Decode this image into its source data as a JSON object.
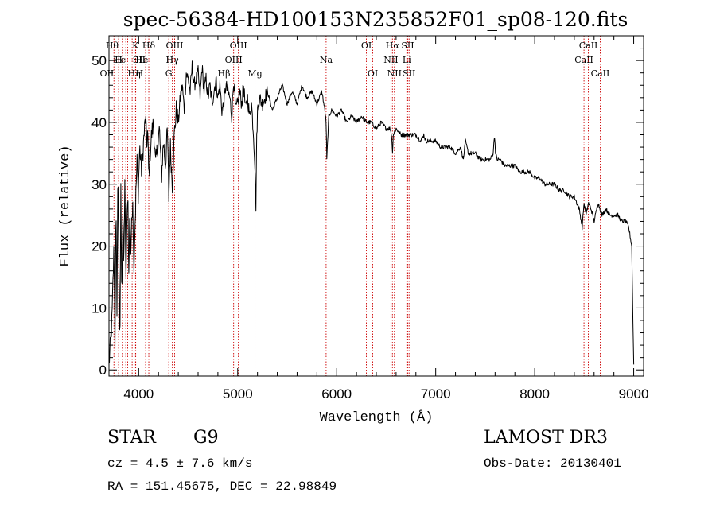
{
  "chart_data": {
    "type": "line",
    "title": "spec-56384-HD100153N235852F01_sp08-120.fits",
    "xlabel": "Wavelength (Å)",
    "ylabel": "Flux (relative)",
    "xlim": [
      3700,
      9100
    ],
    "ylim": [
      -1,
      54
    ],
    "xticks": [
      4000,
      5000,
      6000,
      7000,
      8000,
      9000
    ],
    "yticks": [
      0,
      10,
      20,
      30,
      40,
      50
    ],
    "x_minor_step": 200,
    "y_minor_step": 2,
    "series": [
      {
        "name": "flux",
        "color": "#000000",
        "x": [
          3700,
          3710,
          3730,
          3750,
          3760,
          3770,
          3780,
          3790,
          3800,
          3810,
          3820,
          3830,
          3840,
          3850,
          3860,
          3870,
          3880,
          3890,
          3900,
          3910,
          3920,
          3930,
          3940,
          3950,
          3960,
          3968,
          3975,
          3985,
          3995,
          4010,
          4030,
          4050,
          4070,
          4080,
          4090,
          4102,
          4115,
          4130,
          4150,
          4170,
          4190,
          4210,
          4230,
          4250,
          4270,
          4290,
          4305,
          4310,
          4320,
          4340,
          4360,
          4380,
          4400,
          4420,
          4440,
          4460,
          4480,
          4500,
          4520,
          4540,
          4560,
          4580,
          4600,
          4620,
          4640,
          4660,
          4680,
          4700,
          4720,
          4740,
          4760,
          4780,
          4800,
          4820,
          4840,
          4861,
          4880,
          4900,
          4920,
          4940,
          4960,
          4980,
          5000,
          5020,
          5040,
          5060,
          5080,
          5100,
          5120,
          5140,
          5160,
          5175,
          5183,
          5190,
          5200,
          5220,
          5250,
          5300,
          5350,
          5400,
          5450,
          5500,
          5550,
          5600,
          5650,
          5700,
          5750,
          5800,
          5850,
          5880,
          5893,
          5900,
          5920,
          5950,
          6000,
          6050,
          6100,
          6150,
          6200,
          6250,
          6300,
          6350,
          6400,
          6450,
          6500,
          6540,
          6555,
          6563,
          6572,
          6600,
          6650,
          6700,
          6750,
          6800,
          6850,
          6880,
          6900,
          6950,
          7000,
          7050,
          7100,
          7150,
          7200,
          7250,
          7280,
          7300,
          7330,
          7360,
          7400,
          7450,
          7500,
          7550,
          7580,
          7595,
          7605,
          7620,
          7650,
          7700,
          7750,
          7800,
          7850,
          7900,
          7950,
          8000,
          8050,
          8100,
          8150,
          8200,
          8250,
          8300,
          8350,
          8400,
          8450,
          8480,
          8498,
          8520,
          8542,
          8570,
          8600,
          8640,
          8662,
          8680,
          8720,
          8760,
          8800,
          8840,
          8880,
          8920,
          8950,
          8980,
          8995,
          9000
        ],
        "y": [
          1,
          3,
          8,
          20,
          4,
          26,
          10,
          33,
          18,
          2,
          29,
          12,
          25,
          16,
          31,
          14,
          22,
          30,
          15,
          26,
          19,
          24,
          28,
          16,
          22,
          26,
          30,
          34,
          28,
          36,
          32,
          37,
          41,
          36,
          39,
          31,
          35,
          38,
          40,
          33,
          36,
          39,
          31,
          37,
          33,
          39,
          27,
          32,
          36,
          30,
          38,
          42,
          40,
          44,
          46,
          42,
          48,
          47,
          45,
          49,
          46,
          47,
          48,
          44,
          49,
          45,
          47,
          44,
          46,
          43,
          45,
          47,
          44,
          46,
          42,
          43,
          46,
          45,
          44,
          41,
          47,
          42,
          43,
          45,
          43,
          46,
          42,
          44,
          41,
          43,
          38,
          33,
          25,
          36,
          42,
          44,
          43,
          45,
          42,
          44,
          46,
          43,
          45,
          43,
          46,
          44,
          45,
          43,
          45,
          42,
          40,
          34,
          41,
          42,
          41,
          42,
          40,
          41,
          40,
          41,
          40,
          40,
          39,
          40,
          39,
          39,
          38,
          35,
          38,
          39,
          38,
          38,
          38,
          38,
          37,
          38,
          37,
          37,
          37,
          36,
          36,
          36,
          35,
          36,
          34,
          37,
          35,
          35,
          35,
          34,
          34,
          34,
          35,
          38,
          35,
          34,
          34,
          33,
          33,
          33,
          32,
          32,
          32,
          31,
          31,
          30,
          30,
          30,
          29,
          29,
          28,
          28,
          26,
          23,
          27,
          25,
          27,
          26,
          24,
          27,
          26,
          25,
          26,
          25,
          25,
          25,
          24,
          24,
          23,
          20,
          5,
          1
        ]
      }
    ],
    "lines": [
      {
        "wavelength": 3750,
        "label": "OII",
        "row": 2,
        "anchor": "right"
      },
      {
        "wavelength": 3797,
        "label": "Hθ",
        "row": 0,
        "anchor": "right"
      },
      {
        "wavelength": 3835,
        "label": "H",
        "row": 1,
        "anchor": "right"
      },
      {
        "wavelength": 3870,
        "label": "He",
        "row": 1,
        "anchor": "right"
      },
      {
        "wavelength": 3889,
        "label": "Hη",
        "row": 2,
        "anchor": "left"
      },
      {
        "wavelength": 3934,
        "label": "K",
        "row": 0,
        "anchor": "left"
      },
      {
        "wavelength": 3970,
        "label": "H",
        "row": 2,
        "anchor": "left"
      },
      {
        "wavelength": 3968,
        "label": "He",
        "row": 1,
        "anchor": "left"
      },
      {
        "wavelength": 4070,
        "label": "SII",
        "row": 1,
        "anchor": "right"
      },
      {
        "wavelength": 4102,
        "label": "Hδ",
        "row": 0,
        "anchor": "middle"
      },
      {
        "wavelength": 4304,
        "label": "G",
        "row": 2,
        "anchor": "middle"
      },
      {
        "wavelength": 4340,
        "label": "Hγ",
        "row": 1,
        "anchor": "middle"
      },
      {
        "wavelength": 4363,
        "label": "OIII",
        "row": 0,
        "anchor": "middle"
      },
      {
        "wavelength": 4861,
        "label": "Hβ",
        "row": 2,
        "anchor": "middle"
      },
      {
        "wavelength": 4959,
        "label": "OIII",
        "row": 1,
        "anchor": "middle"
      },
      {
        "wavelength": 5007,
        "label": "OIII",
        "row": 0,
        "anchor": "middle"
      },
      {
        "wavelength": 5175,
        "label": "Mg",
        "row": 2,
        "anchor": "middle"
      },
      {
        "wavelength": 5893,
        "label": "Na",
        "row": 1,
        "anchor": "middle"
      },
      {
        "wavelength": 6300,
        "label": "OI",
        "row": 0,
        "anchor": "middle"
      },
      {
        "wavelength": 6364,
        "label": "OI",
        "row": 2,
        "anchor": "middle"
      },
      {
        "wavelength": 6548,
        "label": "NII",
        "row": 1,
        "anchor": "middle"
      },
      {
        "wavelength": 6563,
        "label": "Hα",
        "row": 0,
        "anchor": "middle"
      },
      {
        "wavelength": 6583,
        "label": "NII",
        "row": 2,
        "anchor": "middle"
      },
      {
        "wavelength": 6708,
        "label": "Li",
        "row": 1,
        "anchor": "middle"
      },
      {
        "wavelength": 6717,
        "label": "SII",
        "row": 0,
        "anchor": "middle"
      },
      {
        "wavelength": 6731,
        "label": "SII",
        "row": 2,
        "anchor": "middle"
      },
      {
        "wavelength": 8498,
        "label": "CaII",
        "row": 1,
        "anchor": "middle"
      },
      {
        "wavelength": 8542,
        "label": "CaII",
        "row": 0,
        "anchor": "middle"
      },
      {
        "wavelength": 8662,
        "label": "CaII",
        "row": 2,
        "anchor": "middle"
      }
    ],
    "line_marker_color": "#cc0000"
  },
  "footer": {
    "object_class": "STAR",
    "subclass": "G9",
    "survey": "LAMOST DR3",
    "redshift": "cz = 4.5 ± 7.6 km/s",
    "obs_date": "Obs-Date: 20130401",
    "coords": "RA = 151.45675, DEC =  22.98849"
  }
}
